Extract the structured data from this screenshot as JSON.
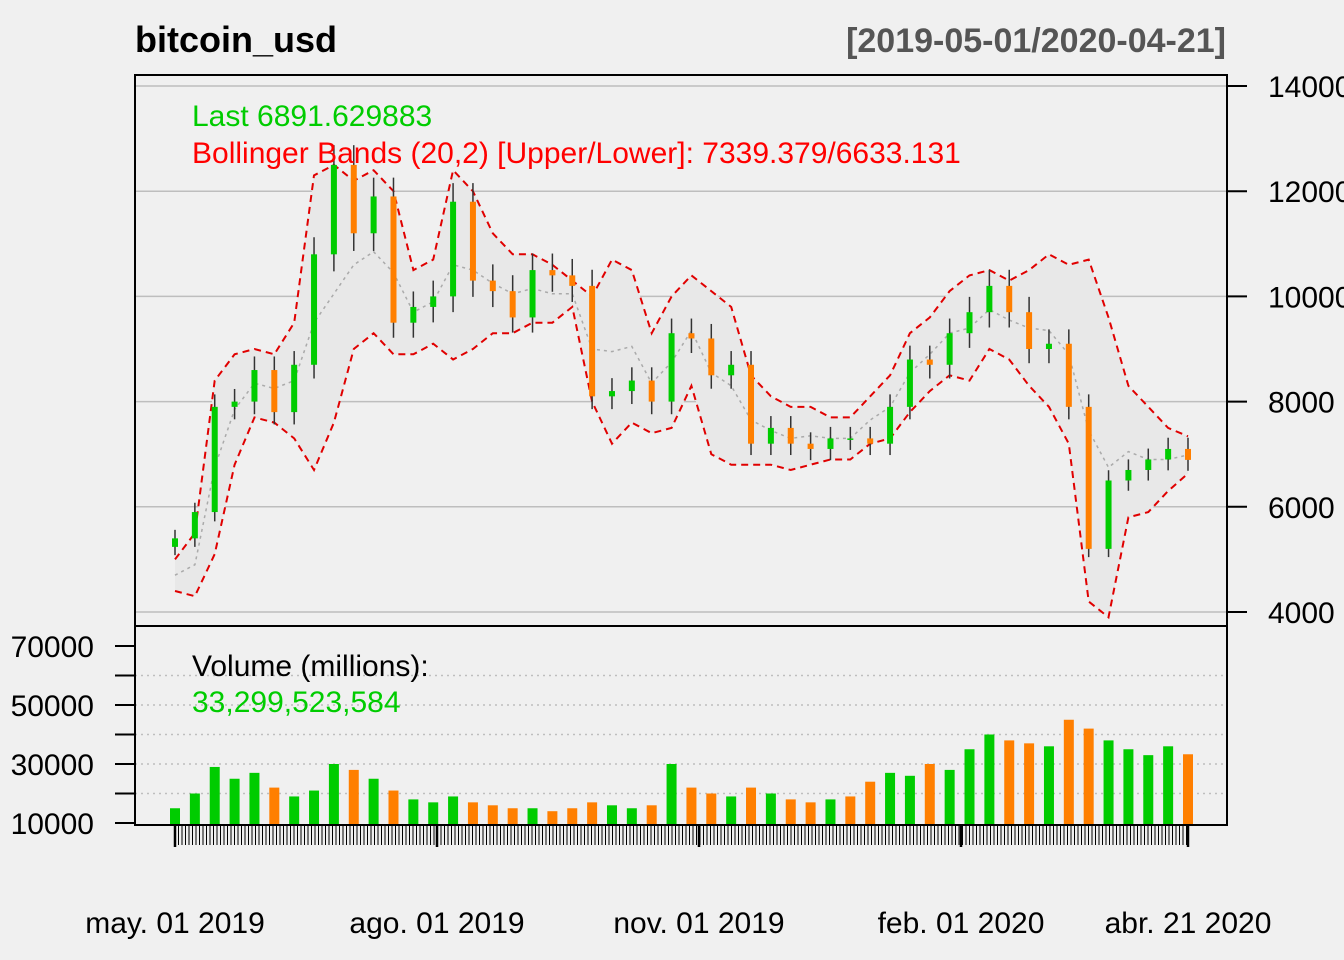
{
  "header": {
    "title": "bitcoin_usd",
    "range": "[2019-05-01/2020-04-21]"
  },
  "annotations": {
    "last": "Last 6891.629883",
    "bb": "Bollinger Bands (20,2) [Upper/Lower]: 7339.379/6633.131",
    "vol_label": "Volume (millions):",
    "vol_value": "33,299,523,584"
  },
  "colors": {
    "up": "#00CC00",
    "down": "#FF7F00",
    "band_line": "#E00000",
    "band_fill": "#E8E8E8",
    "grid": "#BEBEBE",
    "last_text": "#00CC00",
    "bb_text": "#FF0000"
  },
  "chart_data": [
    {
      "type": "candlestick",
      "title": "bitcoin_usd",
      "ylim": [
        4000,
        14000
      ],
      "yticks": [
        "4000",
        "6000",
        "8000",
        "10000",
        "12000",
        "14000"
      ],
      "grid": true,
      "bollinger": {
        "period": 20,
        "sd": 2,
        "upper_last": 7339.379,
        "lower_last": 6633.131
      },
      "last": 6891.629883,
      "x": [
        "2019-05-01",
        "2019-05-08",
        "2019-05-15",
        "2019-05-22",
        "2019-05-29",
        "2019-06-05",
        "2019-06-12",
        "2019-06-19",
        "2019-06-26",
        "2019-07-03",
        "2019-07-10",
        "2019-07-17",
        "2019-07-24",
        "2019-07-31",
        "2019-08-07",
        "2019-08-14",
        "2019-08-21",
        "2019-08-28",
        "2019-09-04",
        "2019-09-11",
        "2019-09-18",
        "2019-09-25",
        "2019-10-02",
        "2019-10-09",
        "2019-10-16",
        "2019-10-23",
        "2019-10-30",
        "2019-11-06",
        "2019-11-13",
        "2019-11-20",
        "2019-11-27",
        "2019-12-04",
        "2019-12-11",
        "2019-12-18",
        "2019-12-25",
        "2020-01-01",
        "2020-01-08",
        "2020-01-15",
        "2020-01-22",
        "2020-01-29",
        "2020-02-05",
        "2020-02-12",
        "2020-02-19",
        "2020-02-26",
        "2020-03-04",
        "2020-03-11",
        "2020-03-18",
        "2020-03-25",
        "2020-04-01",
        "2020-04-08",
        "2020-04-15",
        "2020-04-21"
      ],
      "close": [
        5400,
        5900,
        7900,
        8000,
        8600,
        7800,
        8700,
        10800,
        12500,
        11200,
        11900,
        9500,
        9800,
        10000,
        11800,
        10300,
        10100,
        9600,
        10500,
        10400,
        10200,
        8100,
        8200,
        8400,
        8000,
        9300,
        9200,
        8500,
        8700,
        7200,
        7500,
        7200,
        7100,
        7300,
        7300,
        7200,
        7900,
        8800,
        8700,
        9300,
        9700,
        10200,
        9700,
        9000,
        9100,
        7900,
        5200,
        6500,
        6700,
        6900,
        7100,
        6891.63
      ],
      "upper": [
        5000,
        5500,
        8400,
        8900,
        9000,
        8900,
        9500,
        12300,
        12500,
        12200,
        12400,
        12000,
        10500,
        10700,
        12400,
        12000,
        11200,
        10800,
        10800,
        10600,
        10300,
        10000,
        10700,
        10500,
        9300,
        10000,
        10400,
        10100,
        9800,
        8500,
        8100,
        7900,
        7900,
        7700,
        7700,
        8100,
        8500,
        9300,
        9600,
        10100,
        10400,
        10500,
        10300,
        10500,
        10800,
        10600,
        10700,
        9600,
        8300,
        7900,
        7500,
        7339.38
      ],
      "lower": [
        4400,
        4300,
        5100,
        6800,
        7700,
        7600,
        7300,
        6700,
        7600,
        9000,
        9300,
        8900,
        8900,
        9100,
        8800,
        9000,
        9300,
        9300,
        9500,
        9500,
        9800,
        8000,
        7200,
        7600,
        7400,
        7500,
        8300,
        7000,
        6800,
        6800,
        6800,
        6700,
        6800,
        6900,
        6900,
        7200,
        7300,
        7800,
        8200,
        8500,
        8400,
        9000,
        8800,
        8300,
        7900,
        7200,
        4200,
        3900,
        5800,
        5900,
        6300,
        6633.13
      ]
    },
    {
      "type": "bar",
      "title": "Volume (millions)",
      "ylim": [
        10000,
        75000
      ],
      "yticks": [
        "10000",
        "30000",
        "50000",
        "70000"
      ],
      "x": [
        "2019-05-01",
        "2019-05-08",
        "2019-05-15",
        "2019-05-22",
        "2019-05-29",
        "2019-06-05",
        "2019-06-12",
        "2019-06-19",
        "2019-06-26",
        "2019-07-03",
        "2019-07-10",
        "2019-07-17",
        "2019-07-24",
        "2019-07-31",
        "2019-08-07",
        "2019-08-14",
        "2019-08-21",
        "2019-08-28",
        "2019-09-04",
        "2019-09-11",
        "2019-09-18",
        "2019-09-25",
        "2019-10-02",
        "2019-10-09",
        "2019-10-16",
        "2019-10-23",
        "2019-10-30",
        "2019-11-06",
        "2019-11-13",
        "2019-11-20",
        "2019-11-27",
        "2019-12-04",
        "2019-12-11",
        "2019-12-18",
        "2019-12-25",
        "2020-01-01",
        "2020-01-08",
        "2020-01-15",
        "2020-01-22",
        "2020-01-29",
        "2020-02-05",
        "2020-02-12",
        "2020-02-19",
        "2020-02-26",
        "2020-03-04",
        "2020-03-11",
        "2020-03-18",
        "2020-03-25",
        "2020-04-01",
        "2020-04-08",
        "2020-04-15",
        "2020-04-21"
      ],
      "values": [
        15000,
        20000,
        29000,
        25000,
        27000,
        22000,
        19000,
        21000,
        30000,
        28000,
        25000,
        21000,
        18000,
        17000,
        19000,
        17000,
        16000,
        15000,
        15000,
        14000,
        15000,
        17000,
        16000,
        15000,
        16000,
        30000,
        22000,
        20000,
        19000,
        22000,
        20000,
        18000,
        17000,
        18000,
        19000,
        24000,
        27000,
        26000,
        30000,
        28000,
        35000,
        40000,
        38000,
        37000,
        36000,
        45000,
        42000,
        38000,
        35000,
        33000,
        36000,
        33300
      ],
      "up": [
        true,
        true,
        true,
        true,
        true,
        false,
        true,
        true,
        true,
        false,
        true,
        false,
        true,
        true,
        true,
        false,
        false,
        false,
        true,
        false,
        false,
        false,
        true,
        true,
        false,
        true,
        false,
        false,
        true,
        false,
        true,
        false,
        false,
        true,
        false,
        false,
        true,
        true,
        false,
        true,
        true,
        true,
        false,
        false,
        true,
        false,
        false,
        true,
        true,
        true,
        true,
        false
      ]
    }
  ],
  "xaxis": {
    "ticks": [
      "may. 01 2019",
      "ago. 01 2019",
      "nov. 01 2019",
      "feb. 01 2020",
      "abr. 21 2020"
    ]
  }
}
